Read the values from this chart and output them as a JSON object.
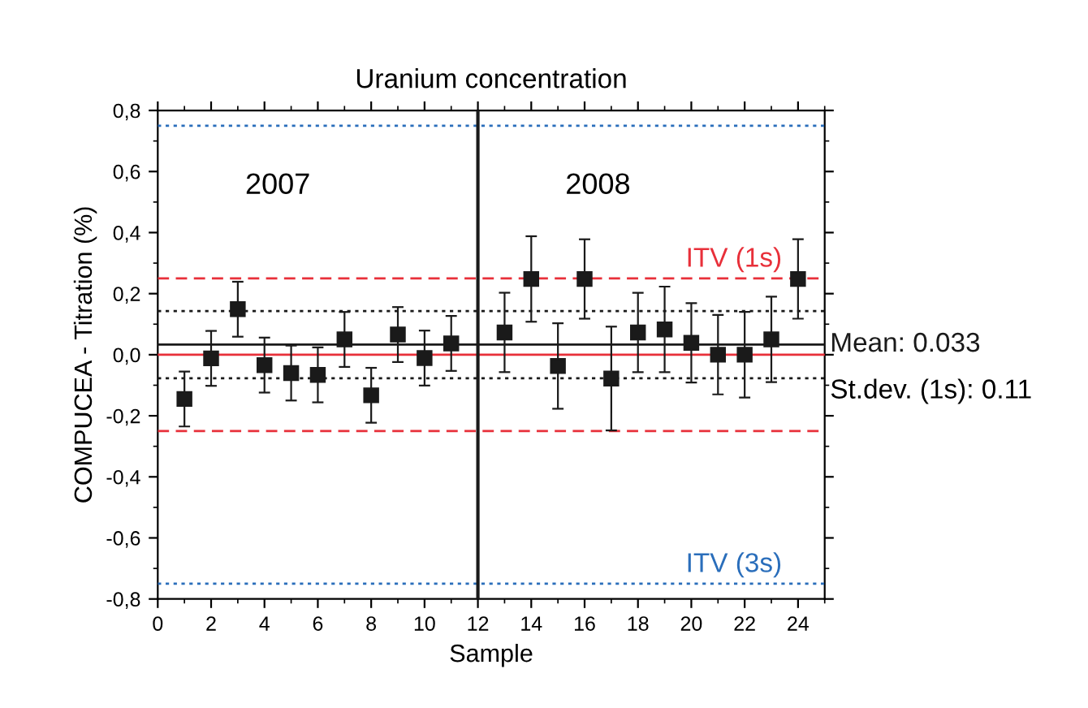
{
  "chart_data": {
    "type": "scatter",
    "title": "Uranium concentration",
    "xlabel": "Sample",
    "ylabel": "COMPUCEA - Titration (%)",
    "x": [
      1,
      2,
      3,
      4,
      5,
      6,
      7,
      8,
      9,
      10,
      11,
      13,
      14,
      15,
      16,
      17,
      18,
      19,
      20,
      21,
      22,
      23,
      24
    ],
    "series": [
      {
        "color": "#1a1a1a",
        "values": [
          -0.145,
          -0.012,
          0.149,
          -0.034,
          -0.06,
          -0.066,
          0.05,
          -0.133,
          0.066,
          -0.011,
          0.037,
          0.073,
          0.248,
          -0.037,
          0.248,
          -0.078,
          0.073,
          0.083,
          0.039,
          0.0,
          0.0,
          0.05,
          0.248
        ],
        "errors": [
          0.09,
          0.09,
          0.09,
          0.09,
          0.09,
          0.09,
          0.09,
          0.09,
          0.09,
          0.09,
          0.09,
          0.13,
          0.14,
          0.14,
          0.13,
          0.17,
          0.13,
          0.14,
          0.13,
          0.13,
          0.14,
          0.14,
          0.13
        ]
      }
    ],
    "marker": "square",
    "grid": false,
    "legend": false,
    "xlim": [
      0,
      25
    ],
    "xticks": [
      0,
      2,
      4,
      6,
      8,
      10,
      12,
      14,
      16,
      18,
      20,
      22,
      24
    ],
    "ylim": [
      -0.8,
      0.8
    ],
    "yticks": [
      {
        "value": -0.8,
        "label": "-0,8"
      },
      {
        "value": -0.6,
        "label": "-0,6"
      },
      {
        "value": -0.4,
        "label": "-0,4"
      },
      {
        "value": -0.2,
        "label": "-0,2"
      },
      {
        "value": 0.0,
        "label": "0,0"
      },
      {
        "value": 0.2,
        "label": "0,2"
      },
      {
        "value": 0.4,
        "label": "0,4"
      },
      {
        "value": 0.6,
        "label": "0,6"
      },
      {
        "value": 0.8,
        "label": "0,8"
      }
    ],
    "ref_lines": [
      {
        "axis": "y",
        "value": 0.75,
        "color": "#2a6ebb",
        "line_style": "dotted"
      },
      {
        "axis": "y",
        "value": -0.75,
        "color": "#2a6ebb",
        "line_style": "dotted",
        "label": "ITV (3s)"
      },
      {
        "axis": "y",
        "value": 0.25,
        "color": "#e8303a",
        "line_style": "dashed",
        "label": "ITV (1s)"
      },
      {
        "axis": "y",
        "value": -0.25,
        "color": "#e8303a",
        "line_style": "dashed"
      },
      {
        "axis": "y",
        "value": 0.143,
        "color": "#1a1a1a",
        "line_style": "dotted"
      },
      {
        "axis": "y",
        "value": -0.077,
        "color": "#1a1a1a",
        "line_style": "dotted"
      },
      {
        "axis": "y",
        "value": 0.0,
        "color": "#e8303a",
        "line_style": "solid"
      },
      {
        "axis": "y",
        "value": 0.033,
        "color": "#1a1a1a",
        "line_style": "solid",
        "label": "Mean: 0.033"
      },
      {
        "axis": "x",
        "value": 12,
        "color": "#1a1a1a",
        "line_style": "solid"
      }
    ],
    "annotations": [
      "2007",
      "2008",
      "St.dev. (1s): 0.11"
    ]
  }
}
